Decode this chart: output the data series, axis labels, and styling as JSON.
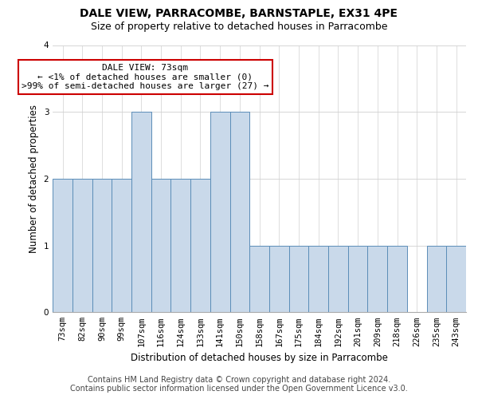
{
  "title": "DALE VIEW, PARRACOMBE, BARNSTAPLE, EX31 4PE",
  "subtitle": "Size of property relative to detached houses in Parracombe",
  "xlabel": "Distribution of detached houses by size in Parracombe",
  "ylabel": "Number of detached properties",
  "categories": [
    "73sqm",
    "82sqm",
    "90sqm",
    "99sqm",
    "107sqm",
    "116sqm",
    "124sqm",
    "133sqm",
    "141sqm",
    "150sqm",
    "158sqm",
    "167sqm",
    "175sqm",
    "184sqm",
    "192sqm",
    "201sqm",
    "209sqm",
    "218sqm",
    "226sqm",
    "235sqm",
    "243sqm"
  ],
  "bar_heights": [
    2,
    2,
    2,
    2,
    3,
    2,
    2,
    2,
    3,
    3,
    1,
    1,
    1,
    1,
    1,
    1,
    1,
    1,
    0,
    1,
    1
  ],
  "bar_color": "#c9d9ea",
  "bar_edge_color": "#5b8db8",
  "annotation_line1": "DALE VIEW: 73sqm",
  "annotation_line2": "← <1% of detached houses are smaller (0)",
  "annotation_line3": ">99% of semi-detached houses are larger (27) →",
  "annotation_box_color": "#ffffff",
  "annotation_box_edge": "#cc0000",
  "ylim": [
    0,
    4
  ],
  "yticks": [
    0,
    1,
    2,
    3,
    4
  ],
  "footer_line1": "Contains HM Land Registry data © Crown copyright and database right 2024.",
  "footer_line2": "Contains public sector information licensed under the Open Government Licence v3.0.",
  "title_fontsize": 10,
  "subtitle_fontsize": 9,
  "axis_label_fontsize": 8.5,
  "tick_fontsize": 7.5,
  "annotation_fontsize": 8,
  "footer_fontsize": 7,
  "background_color": "#ffffff",
  "grid_color": "#d0d0d0"
}
